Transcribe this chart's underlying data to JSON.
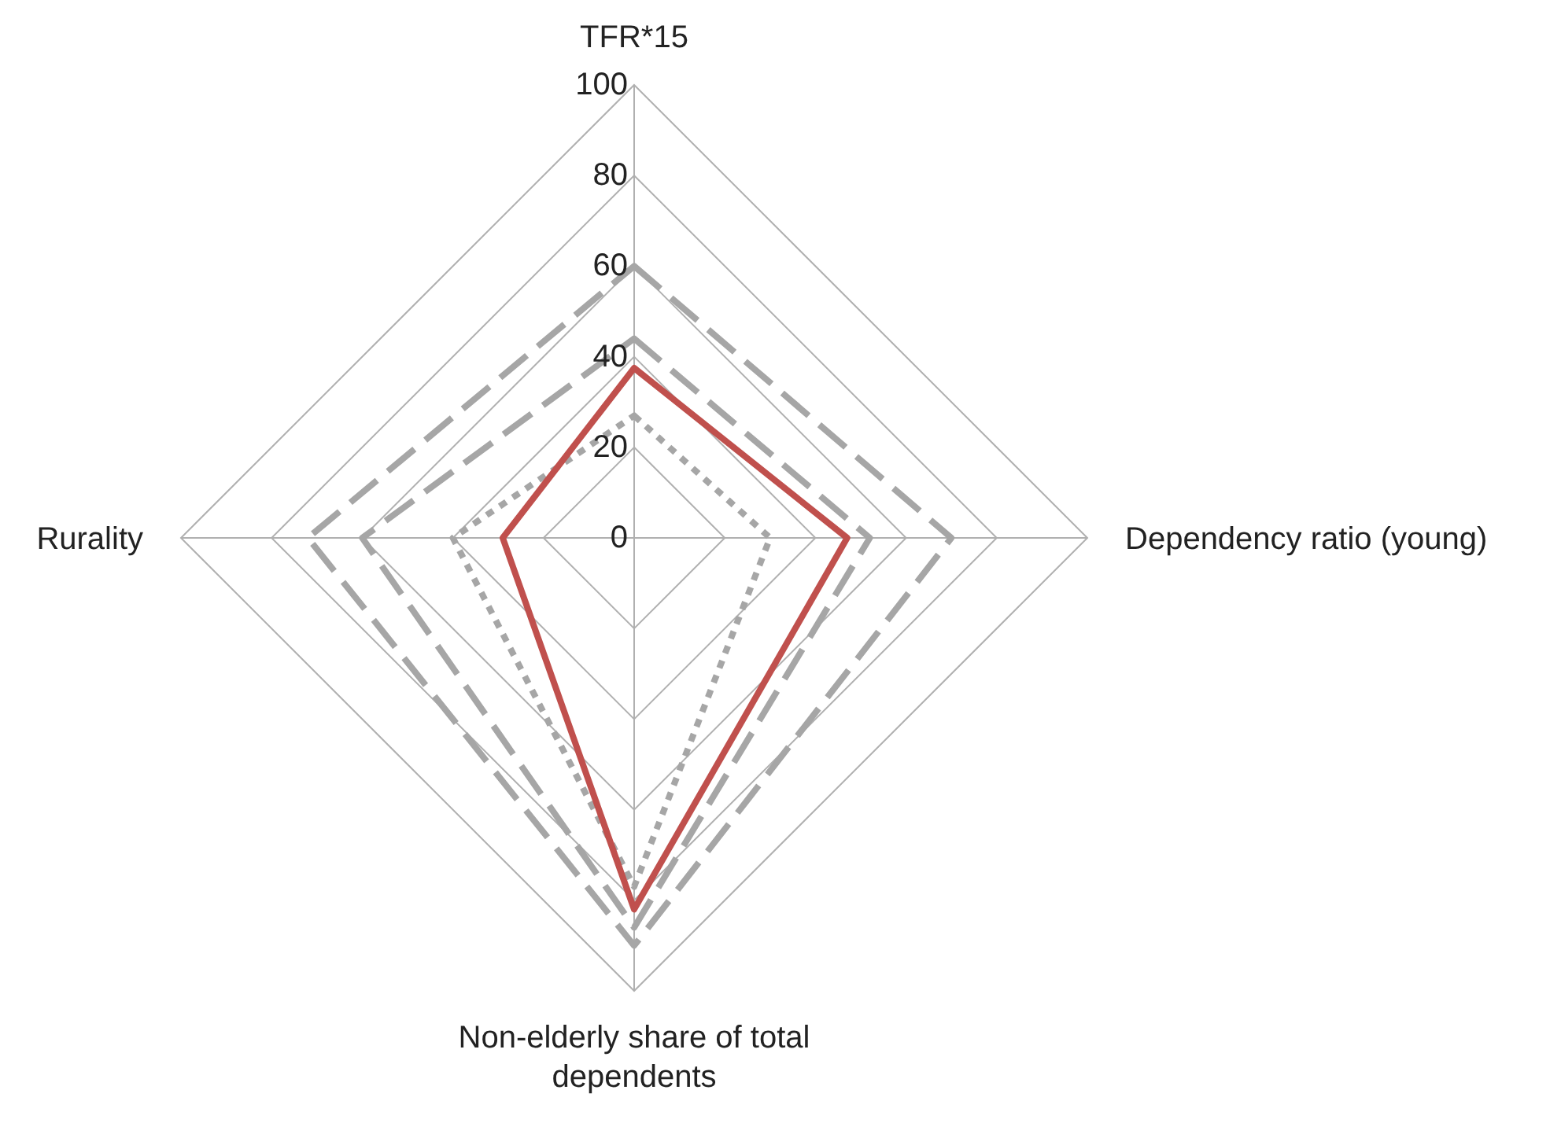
{
  "chart_data": {
    "type": "radar",
    "categories": [
      "TFR*15",
      "Dependency ratio (young)",
      "Non-elderly share of total dependents",
      "Rurality"
    ],
    "series": [
      {
        "color": "#a6a6a6",
        "line_style": "dashed",
        "values": [
          60,
          70,
          90,
          72
        ]
      },
      {
        "color": "#a6a6a6",
        "line_style": "dashed",
        "values": [
          44,
          52,
          86,
          60
        ]
      },
      {
        "color": "#a6a6a6",
        "line_style": "dotted",
        "values": [
          27,
          30,
          77,
          40
        ]
      },
      {
        "color": "#c0504d",
        "line_style": "solid",
        "values": [
          37.5,
          47,
          82,
          29
        ]
      }
    ],
    "ylim": [
      0,
      100
    ],
    "yticks": [
      0,
      20,
      40,
      60,
      80,
      100
    ],
    "grid": true,
    "marker": "none"
  }
}
